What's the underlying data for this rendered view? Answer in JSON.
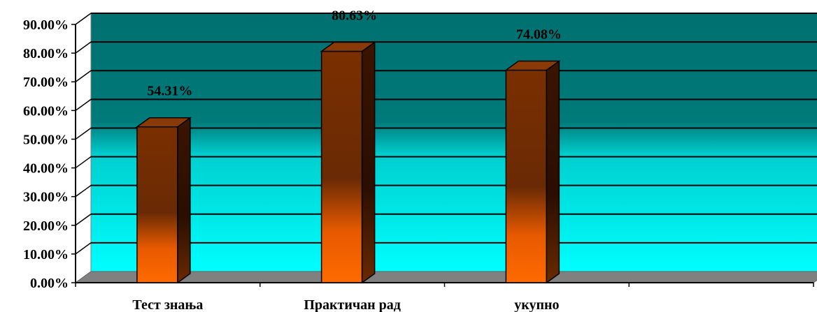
{
  "chart_data": {
    "type": "bar",
    "categories": [
      "Тест знања",
      "Практичан рад",
      "укупно",
      ""
    ],
    "values": [
      54.31,
      80.63,
      74.08,
      null
    ],
    "value_labels": [
      "54.31%",
      "80.63%",
      "74.08%",
      ""
    ],
    "ylim": [
      0,
      90
    ],
    "yticks": [
      0,
      10,
      20,
      30,
      40,
      50,
      60,
      70,
      80,
      90
    ],
    "ytick_labels": [
      "0.00%",
      "10.00%",
      "20.00%",
      "30.00%",
      "40.00%",
      "50.00%",
      "60.00%",
      "70.00%",
      "80.00%",
      "90.00%"
    ],
    "title": "",
    "xlabel": "",
    "ylabel": "",
    "grid": true,
    "legend": false,
    "style": "3d-cylinder-bars",
    "colors": {
      "wall_top": "#007070",
      "wall_bottom": "#00ffff",
      "floor": "#808080",
      "bar_dark": "#7a2f00",
      "bar_light": "#ff6a00",
      "bar_side": "#3a1400"
    }
  }
}
